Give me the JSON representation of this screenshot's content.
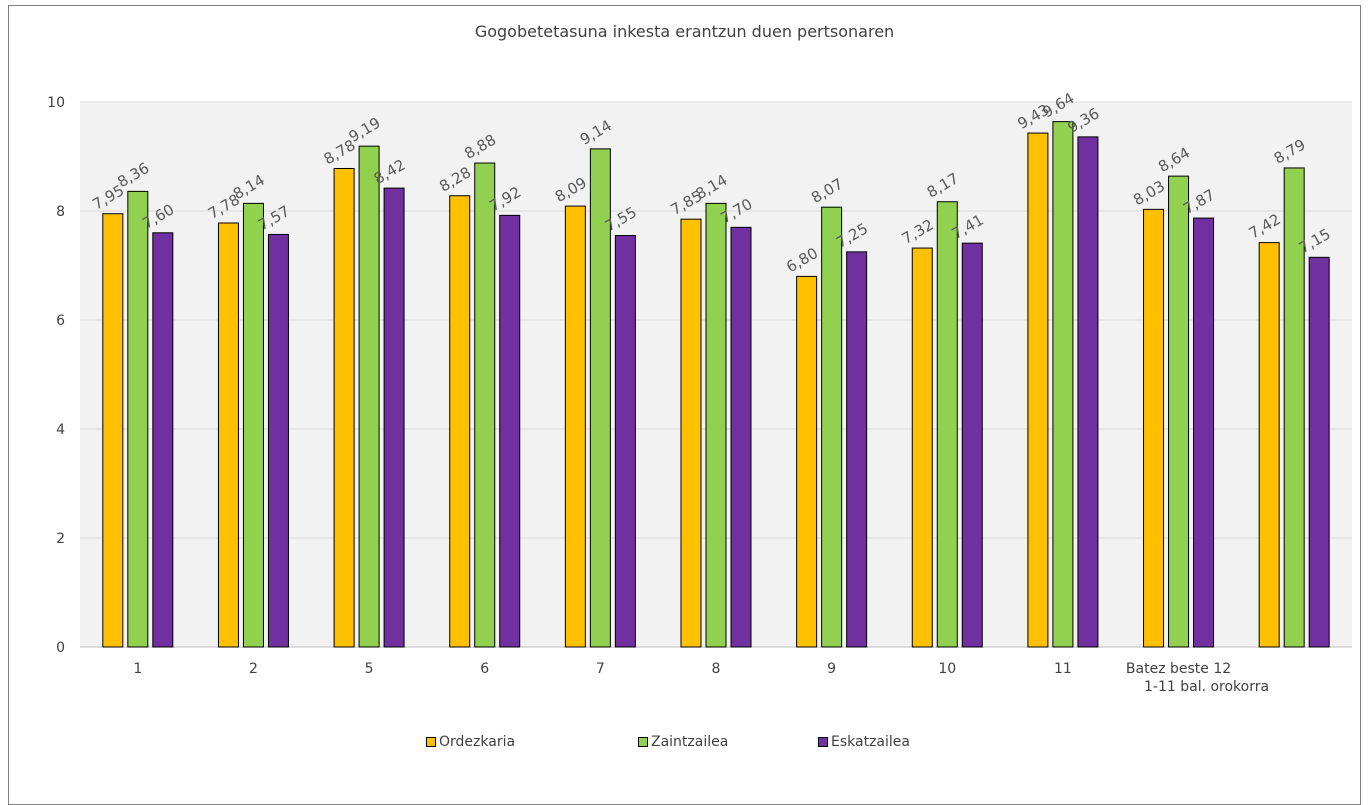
{
  "chart_data": {
    "type": "bar",
    "title": "Gogobetetasuna inkesta erantzun duen pertsonaren",
    "categories": [
      "1",
      "2",
      "5",
      "6",
      "7",
      "8",
      "9",
      "10",
      "11",
      "Batez beste 12\n1-11 bal. orokorra",
      ""
    ],
    "category_lines": [
      [
        "1"
      ],
      [
        "2"
      ],
      [
        "5"
      ],
      [
        "6"
      ],
      [
        "7"
      ],
      [
        "8"
      ],
      [
        "9"
      ],
      [
        "10"
      ],
      [
        "11"
      ],
      [
        "Batez beste 12",
        "1-11 bal. orokorra"
      ],
      []
    ],
    "series": [
      {
        "name": "Ordezkaria",
        "color": "#FFC000",
        "values": [
          7.95,
          7.78,
          8.78,
          8.28,
          8.09,
          7.85,
          6.8,
          7.32,
          9.43,
          8.03,
          7.42
        ],
        "labels": [
          "7,95",
          "7,78",
          "8,78",
          "8,28",
          "8,09",
          "7,85",
          "6,80",
          "7,32",
          "9,43",
          "8,03",
          "7,42"
        ]
      },
      {
        "name": "Zaintzailea",
        "color": "#92D050",
        "values": [
          8.36,
          8.14,
          9.19,
          8.88,
          9.14,
          8.14,
          8.07,
          8.17,
          9.64,
          8.64,
          8.79
        ],
        "labels": [
          "8,36",
          "8,14",
          "9,19",
          "8,88",
          "9,14",
          "8,14",
          "8,07",
          "8,17",
          "9,64",
          "8,64",
          "8,79"
        ]
      },
      {
        "name": "Eskatzailea",
        "color": "#7030A0",
        "values": [
          7.6,
          7.57,
          8.42,
          7.92,
          7.55,
          7.7,
          7.25,
          7.41,
          9.36,
          7.87,
          7.15
        ],
        "labels": [
          "7,60",
          "7,57",
          "8,42",
          "7,92",
          "7,55",
          "7,70",
          "7,25",
          "7,41",
          "9,36",
          "7,87",
          "7,15"
        ]
      }
    ],
    "ylim": [
      0,
      10
    ],
    "yticks": [
      0,
      2,
      4,
      6,
      8,
      10
    ],
    "grid": true,
    "plot_background": "#F2F2F2",
    "legend_position": "bottom"
  }
}
